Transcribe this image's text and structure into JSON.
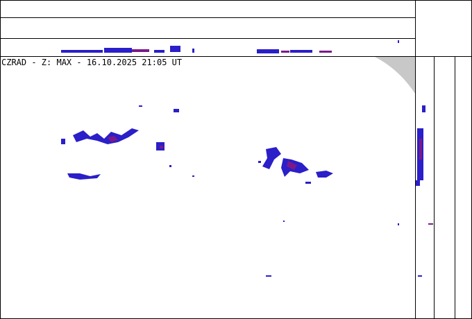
{
  "title": "CZRAD - Z: MAX - 16.10.2025 21:05 UT"
}
